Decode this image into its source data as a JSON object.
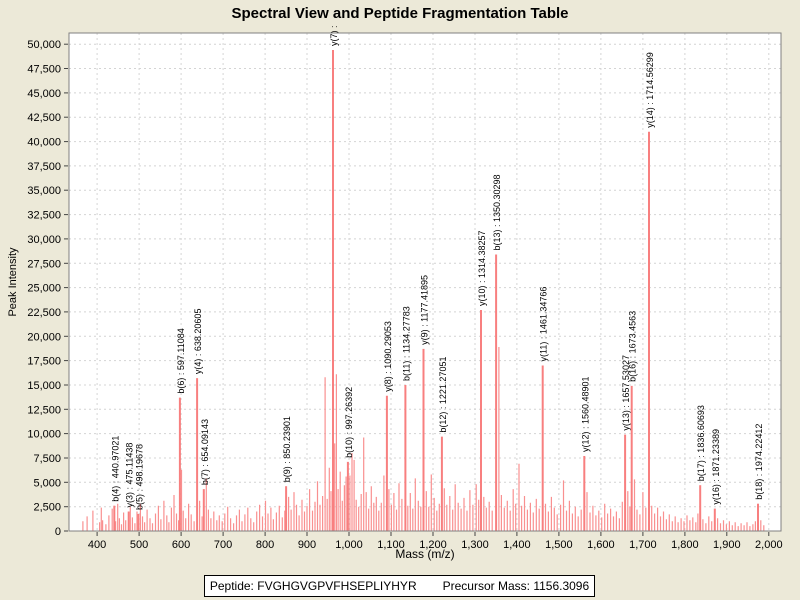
{
  "chart_data": {
    "type": "bar",
    "title": "Spectral View and Peptide Fragmentation Table",
    "xlabel": "Mass (m/z)",
    "ylabel": "Peak Intensity",
    "xlim": [
      333,
      2029
    ],
    "ylim": [
      0,
      51150
    ],
    "grid": true,
    "legend": "none",
    "colors": {
      "page_bg": "#ece9d8",
      "plot_bg": "#ffffff",
      "grid": "#d4d4d4",
      "border": "#808080",
      "peak": "#f99090",
      "peak_major": "#f87f7f",
      "text": "#000000"
    },
    "x_ticks": [
      {
        "v": 400,
        "label": "400"
      },
      {
        "v": 500,
        "label": "500"
      },
      {
        "v": 600,
        "label": "600"
      },
      {
        "v": 700,
        "label": "700"
      },
      {
        "v": 800,
        "label": "800"
      },
      {
        "v": 900,
        "label": "900"
      },
      {
        "v": 1000,
        "label": "1,000"
      },
      {
        "v": 1100,
        "label": "1,100"
      },
      {
        "v": 1200,
        "label": "1,200"
      },
      {
        "v": 1300,
        "label": "1,300"
      },
      {
        "v": 1400,
        "label": "1,400"
      },
      {
        "v": 1500,
        "label": "1,500"
      },
      {
        "v": 1600,
        "label": "1,600"
      },
      {
        "v": 1700,
        "label": "1,700"
      },
      {
        "v": 1800,
        "label": "1,800"
      },
      {
        "v": 1900,
        "label": "1,900"
      },
      {
        "v": 2000,
        "label": "2,000"
      }
    ],
    "y_ticks": [
      {
        "v": 0,
        "label": "0"
      },
      {
        "v": 2500,
        "label": "2,500"
      },
      {
        "v": 5000,
        "label": "5,000"
      },
      {
        "v": 7500,
        "label": "7,500"
      },
      {
        "v": 10000,
        "label": "10,000"
      },
      {
        "v": 12500,
        "label": "12,500"
      },
      {
        "v": 15000,
        "label": "15,000"
      },
      {
        "v": 17500,
        "label": "17,500"
      },
      {
        "v": 20000,
        "label": "20,000"
      },
      {
        "v": 22500,
        "label": "22,500"
      },
      {
        "v": 25000,
        "label": "25,000"
      },
      {
        "v": 27500,
        "label": "27,500"
      },
      {
        "v": 30000,
        "label": "30,000"
      },
      {
        "v": 32500,
        "label": "32,500"
      },
      {
        "v": 35000,
        "label": "35,000"
      },
      {
        "v": 37500,
        "label": "37,500"
      },
      {
        "v": 40000,
        "label": "40,000"
      },
      {
        "v": 42500,
        "label": "42,500"
      },
      {
        "v": 45000,
        "label": "45,000"
      },
      {
        "v": 47500,
        "label": "47,500"
      },
      {
        "v": 50000,
        "label": "50,000"
      }
    ],
    "labeled_peaks": [
      {
        "label": "b(4) : 440.97021",
        "mass": 440.97021,
        "intensity": 2600
      },
      {
        "label": "y(3) : 475.11438",
        "mass": 475.11438,
        "intensity": 2000
      },
      {
        "label": "b(5) : 498.19678",
        "mass": 498.19678,
        "intensity": 1750
      },
      {
        "label": "b(6) : 597.11084",
        "mass": 597.11084,
        "intensity": 13700
      },
      {
        "label": "y(4) : 638.20605",
        "mass": 638.20605,
        "intensity": 15700
      },
      {
        "label": "b(7) : 654.09143",
        "mass": 654.09143,
        "intensity": 4300
      },
      {
        "label": "b(9) : 850.23901",
        "mass": 850.23901,
        "intensity": 4600
      },
      {
        "label": "y(7) :",
        "mass": 961.8,
        "intensity": 49400
      },
      {
        "label": "b(10) : 997.26392",
        "mass": 997.26392,
        "intensity": 7100
      },
      {
        "label": "y(8) : 1090.29053",
        "mass": 1090.29053,
        "intensity": 13900
      },
      {
        "label": "b(11) : 1134.27783",
        "mass": 1134.27783,
        "intensity": 15000
      },
      {
        "label": "y(9) : 1177.41895",
        "mass": 1177.41895,
        "intensity": 18700
      },
      {
        "label": "b(12) : 1221.27051",
        "mass": 1221.27051,
        "intensity": 9700
      },
      {
        "label": "y(10) : 1314.38257",
        "mass": 1314.38257,
        "intensity": 22700
      },
      {
        "label": "b(13) : 1350.30298",
        "mass": 1350.30298,
        "intensity": 28400
      },
      {
        "label": "y(11) : 1461.34766",
        "mass": 1461.34766,
        "intensity": 17000
      },
      {
        "label": "y(12) : 1560.48901",
        "mass": 1560.48901,
        "intensity": 7700
      },
      {
        "label": "y(13) : 1657.53027",
        "mass": 1657.53027,
        "intensity": 9900
      },
      {
        "label": "b(16) : 1673.4563",
        "mass": 1673.4563,
        "intensity": 14900
      },
      {
        "label": "y(14) : 1714.56299",
        "mass": 1714.56299,
        "intensity": 41000
      },
      {
        "label": "b(17) : 1836.60693",
        "mass": 1836.60693,
        "intensity": 4700
      },
      {
        "label": "y(16) : 1871.23389",
        "mass": 1871.23389,
        "intensity": 2300
      },
      {
        "label": "b(18) : 1974.22412",
        "mass": 1974.22412,
        "intensity": 2800
      }
    ],
    "background_peaks": [
      [
        366,
        1000
      ],
      [
        376,
        1500
      ],
      [
        390,
        2100
      ],
      [
        406,
        900
      ],
      [
        410,
        2400
      ],
      [
        413,
        1100
      ],
      [
        421,
        700
      ],
      [
        428,
        1600
      ],
      [
        436,
        2300
      ],
      [
        444,
        1000
      ],
      [
        449,
        2800
      ],
      [
        453,
        1300
      ],
      [
        458,
        700
      ],
      [
        463,
        1900
      ],
      [
        468,
        1100
      ],
      [
        479,
        2500
      ],
      [
        484,
        1400
      ],
      [
        490,
        800
      ],
      [
        495,
        2000
      ],
      [
        503,
        2800
      ],
      [
        508,
        1500
      ],
      [
        513,
        900
      ],
      [
        519,
        2200
      ],
      [
        526,
        1300
      ],
      [
        532,
        800
      ],
      [
        539,
        1800
      ],
      [
        546,
        2600
      ],
      [
        552,
        1200
      ],
      [
        559,
        3100
      ],
      [
        566,
        1600
      ],
      [
        571,
        900
      ],
      [
        577,
        2400
      ],
      [
        583,
        3700
      ],
      [
        589,
        1800
      ],
      [
        594,
        1100
      ],
      [
        601,
        6300
      ],
      [
        605,
        2100
      ],
      [
        611,
        1300
      ],
      [
        618,
        2800
      ],
      [
        624,
        1700
      ],
      [
        631,
        1000
      ],
      [
        644,
        3100
      ],
      [
        650,
        1500
      ],
      [
        660,
        5400
      ],
      [
        665,
        2200
      ],
      [
        671,
        1300
      ],
      [
        678,
        2000
      ],
      [
        685,
        1100
      ],
      [
        691,
        1600
      ],
      [
        698,
        1000
      ],
      [
        704,
        1800
      ],
      [
        711,
        2500
      ],
      [
        718,
        1300
      ],
      [
        725,
        800
      ],
      [
        732,
        1600
      ],
      [
        739,
        2200
      ],
      [
        745,
        1000
      ],
      [
        752,
        1700
      ],
      [
        759,
        2400
      ],
      [
        766,
        1300
      ],
      [
        773,
        900
      ],
      [
        780,
        2000
      ],
      [
        787,
        2700
      ],
      [
        794,
        1500
      ],
      [
        801,
        3100
      ],
      [
        807,
        1800
      ],
      [
        814,
        2400
      ],
      [
        820,
        1200
      ],
      [
        827,
        1900
      ],
      [
        834,
        2600
      ],
      [
        841,
        1400
      ],
      [
        847,
        2100
      ],
      [
        856,
        3500
      ],
      [
        862,
        2200
      ],
      [
        869,
        4000
      ],
      [
        875,
        2700
      ],
      [
        881,
        1600
      ],
      [
        888,
        3200
      ],
      [
        894,
        2000
      ],
      [
        900,
        2600
      ],
      [
        906,
        4300
      ],
      [
        913,
        2100
      ],
      [
        919,
        3000
      ],
      [
        925,
        5100
      ],
      [
        931,
        2700
      ],
      [
        937,
        3600
      ],
      [
        943,
        15800
      ],
      [
        948,
        3300
      ],
      [
        953,
        6500
      ],
      [
        957,
        4100
      ],
      [
        966,
        9000
      ],
      [
        970,
        16100
      ],
      [
        974,
        4300
      ],
      [
        979,
        6100
      ],
      [
        984,
        3100
      ],
      [
        989,
        4700
      ],
      [
        993,
        5600
      ],
      [
        1002,
        5700
      ],
      [
        1007,
        8000
      ],
      [
        1012,
        7300
      ],
      [
        1017,
        3200
      ],
      [
        1023,
        2500
      ],
      [
        1029,
        3800
      ],
      [
        1035,
        9600
      ],
      [
        1041,
        4000
      ],
      [
        1047,
        2300
      ],
      [
        1053,
        4600
      ],
      [
        1059,
        2900
      ],
      [
        1065,
        3500
      ],
      [
        1071,
        2100
      ],
      [
        1077,
        2900
      ],
      [
        1083,
        5700
      ],
      [
        1095,
        4300
      ],
      [
        1101,
        2700
      ],
      [
        1107,
        3900
      ],
      [
        1113,
        2200
      ],
      [
        1119,
        4900
      ],
      [
        1126,
        3300
      ],
      [
        1140,
        2600
      ],
      [
        1146,
        3900
      ],
      [
        1152,
        2300
      ],
      [
        1158,
        5400
      ],
      [
        1165,
        3100
      ],
      [
        1171,
        2500
      ],
      [
        1184,
        4100
      ],
      [
        1190,
        2500
      ],
      [
        1196,
        5800
      ],
      [
        1203,
        3400
      ],
      [
        1209,
        2100
      ],
      [
        1215,
        2800
      ],
      [
        1227,
        4400
      ],
      [
        1233,
        2700
      ],
      [
        1240,
        3600
      ],
      [
        1247,
        2200
      ],
      [
        1253,
        4800
      ],
      [
        1260,
        2900
      ],
      [
        1267,
        2300
      ],
      [
        1274,
        3400
      ],
      [
        1281,
        2100
      ],
      [
        1288,
        4200
      ],
      [
        1295,
        2700
      ],
      [
        1303,
        4800
      ],
      [
        1309,
        3200
      ],
      [
        1321,
        3500
      ],
      [
        1327,
        2400
      ],
      [
        1334,
        3000
      ],
      [
        1341,
        2100
      ],
      [
        1357,
        18900
      ],
      [
        1363,
        3700
      ],
      [
        1370,
        2400
      ],
      [
        1377,
        3100
      ],
      [
        1384,
        2100
      ],
      [
        1391,
        4300
      ],
      [
        1397,
        2800
      ],
      [
        1405,
        6900
      ],
      [
        1411,
        2600
      ],
      [
        1418,
        3600
      ],
      [
        1425,
        2200
      ],
      [
        1432,
        2900
      ],
      [
        1439,
        1900
      ],
      [
        1446,
        3300
      ],
      [
        1453,
        2300
      ],
      [
        1468,
        2800
      ],
      [
        1475,
        2000
      ],
      [
        1482,
        3500
      ],
      [
        1489,
        2400
      ],
      [
        1496,
        1700
      ],
      [
        1504,
        2700
      ],
      [
        1511,
        5200
      ],
      [
        1518,
        2100
      ],
      [
        1525,
        3100
      ],
      [
        1532,
        1800
      ],
      [
        1539,
        2500
      ],
      [
        1546,
        1500
      ],
      [
        1553,
        2200
      ],
      [
        1567,
        4000
      ],
      [
        1574,
        1900
      ],
      [
        1581,
        2600
      ],
      [
        1588,
        1600
      ],
      [
        1595,
        2100
      ],
      [
        1602,
        1400
      ],
      [
        1609,
        2800
      ],
      [
        1616,
        1800
      ],
      [
        1623,
        2300
      ],
      [
        1630,
        1500
      ],
      [
        1637,
        2000
      ],
      [
        1644,
        1300
      ],
      [
        1651,
        3000
      ],
      [
        1664,
        4100
      ],
      [
        1669,
        2500
      ],
      [
        1680,
        5300
      ],
      [
        1686,
        2200
      ],
      [
        1693,
        1700
      ],
      [
        1700,
        4000
      ],
      [
        1707,
        2400
      ],
      [
        1721,
        2600
      ],
      [
        1728,
        1800
      ],
      [
        1735,
        2400
      ],
      [
        1742,
        1500
      ],
      [
        1749,
        2000
      ],
      [
        1756,
        1200
      ],
      [
        1763,
        1700
      ],
      [
        1770,
        1000
      ],
      [
        1777,
        1500
      ],
      [
        1784,
        900
      ],
      [
        1791,
        1300
      ],
      [
        1798,
        1000
      ],
      [
        1805,
        1600
      ],
      [
        1812,
        1100
      ],
      [
        1819,
        1400
      ],
      [
        1826,
        900
      ],
      [
        1831,
        1800
      ],
      [
        1843,
        1200
      ],
      [
        1850,
        800
      ],
      [
        1857,
        1500
      ],
      [
        1864,
        1000
      ],
      [
        1878,
        1300
      ],
      [
        1885,
        800
      ],
      [
        1892,
        1100
      ],
      [
        1899,
        700
      ],
      [
        1906,
        1000
      ],
      [
        1913,
        600
      ],
      [
        1920,
        900
      ],
      [
        1927,
        500
      ],
      [
        1934,
        800
      ],
      [
        1941,
        600
      ],
      [
        1948,
        900
      ],
      [
        1955,
        500
      ],
      [
        1962,
        700
      ],
      [
        1968,
        1000
      ],
      [
        1981,
        1100
      ],
      [
        1988,
        600
      ]
    ]
  },
  "footer": {
    "peptide_label": "Peptide:",
    "peptide_value": "FVGHGVGPVFHSEPLIYHYR",
    "precursor_label": "Precursor Mass:",
    "precursor_value": "1156.3096"
  }
}
